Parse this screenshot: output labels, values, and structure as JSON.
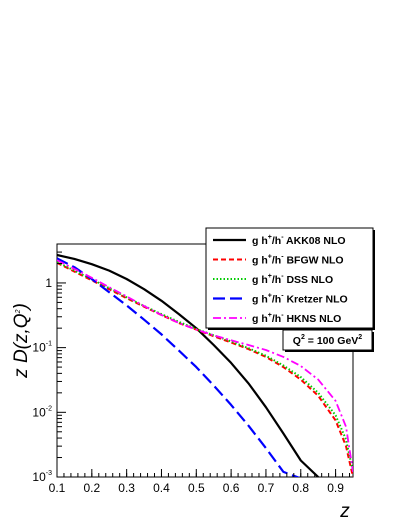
{
  "chart_data": {
    "type": "line",
    "xlabel": "z",
    "ylabel": "z D(z,Q²)",
    "xlim": [
      0.1,
      0.95
    ],
    "ylim": [
      0.001,
      4
    ],
    "yscale": "log",
    "x_ticks": [
      "0.1",
      "0.2",
      "0.3",
      "0.4",
      "0.5",
      "0.6",
      "0.7",
      "0.8",
      "0.9"
    ],
    "y_ticks": [
      {
        "value": 1,
        "base": "1",
        "exp": ""
      },
      {
        "value": 0.1,
        "base": "10",
        "exp": "-1"
      },
      {
        "value": 0.01,
        "base": "10",
        "exp": "-2"
      },
      {
        "value": 0.001,
        "base": "10",
        "exp": "-3"
      }
    ],
    "annotation": {
      "pre": "Q",
      "sup1": "2",
      "mid": " = 100 GeV",
      "sup2": "2"
    },
    "legend_position": "top-right",
    "series": [
      {
        "name": "g h+/h- AKK08 NLO",
        "prefix": "g h",
        "sup1": "+",
        "mid": "/h",
        "sup2": "-",
        "suffix": " AKK08 NLO",
        "color": "#000000",
        "dash": "",
        "width": 2.2,
        "x": [
          0.1,
          0.15,
          0.2,
          0.25,
          0.3,
          0.35,
          0.4,
          0.45,
          0.5,
          0.55,
          0.6,
          0.65,
          0.7,
          0.75,
          0.8,
          0.85
        ],
        "y": [
          2.7,
          2.35,
          1.95,
          1.55,
          1.15,
          0.8,
          0.53,
          0.33,
          0.2,
          0.11,
          0.058,
          0.028,
          0.012,
          0.0047,
          0.0018,
          0.001
        ]
      },
      {
        "name": "g h+/h- BFGW NLO",
        "prefix": "g h",
        "sup1": "+",
        "mid": "/h",
        "sup2": "-",
        "suffix": " BFGW NLO",
        "color": "#ff0000",
        "dash": "5,3",
        "width": 2,
        "x": [
          0.1,
          0.15,
          0.2,
          0.25,
          0.3,
          0.35,
          0.4,
          0.45,
          0.5,
          0.55,
          0.6,
          0.65,
          0.7,
          0.75,
          0.8,
          0.85,
          0.9,
          0.93,
          0.95
        ],
        "y": [
          2.05,
          1.5,
          1.1,
          0.8,
          0.58,
          0.43,
          0.32,
          0.24,
          0.19,
          0.15,
          0.12,
          0.095,
          0.072,
          0.05,
          0.032,
          0.018,
          0.0075,
          0.003,
          0.001
        ]
      },
      {
        "name": "g h+/h- DSS NLO",
        "prefix": "g h",
        "sup1": "+",
        "mid": "/h",
        "sup2": "-",
        "suffix": " DSS NLO",
        "color": "#00cc00",
        "dash": "1.5,2",
        "width": 2,
        "x": [
          0.1,
          0.15,
          0.2,
          0.25,
          0.3,
          0.35,
          0.4,
          0.45,
          0.5,
          0.55,
          0.6,
          0.65,
          0.7,
          0.75,
          0.8,
          0.85,
          0.9,
          0.93,
          0.95
        ],
        "y": [
          2.1,
          1.55,
          1.14,
          0.83,
          0.6,
          0.44,
          0.33,
          0.25,
          0.195,
          0.155,
          0.125,
          0.098,
          0.075,
          0.053,
          0.035,
          0.02,
          0.009,
          0.0038,
          0.0012
        ]
      },
      {
        "name": "g h+/h- Kretzer NLO",
        "prefix": "g h",
        "sup1": "+",
        "mid": "/h",
        "sup2": "-",
        "suffix": " Kretzer NLO",
        "color": "#0000ff",
        "dash": "12,5",
        "width": 2.2,
        "x": [
          0.1,
          0.15,
          0.2,
          0.25,
          0.3,
          0.35,
          0.4,
          0.45,
          0.5,
          0.55,
          0.6,
          0.65,
          0.7,
          0.75,
          0.8
        ],
        "y": [
          2.4,
          1.75,
          1.15,
          0.72,
          0.45,
          0.27,
          0.16,
          0.09,
          0.05,
          0.026,
          0.013,
          0.0062,
          0.0028,
          0.0012,
          0.00095
        ]
      },
      {
        "name": "g h+/h- HKNS NLO",
        "prefix": "g h",
        "sup1": "+",
        "mid": "/h",
        "sup2": "-",
        "suffix": " HKNS NLO",
        "color": "#ff00ff",
        "dash": "8,3,2,3",
        "width": 1.8,
        "x": [
          0.1,
          0.15,
          0.2,
          0.25,
          0.3,
          0.35,
          0.4,
          0.45,
          0.5,
          0.55,
          0.6,
          0.65,
          0.7,
          0.75,
          0.8,
          0.85,
          0.9,
          0.93,
          0.95
        ],
        "y": [
          2.25,
          1.65,
          1.2,
          0.86,
          0.62,
          0.44,
          0.32,
          0.24,
          0.19,
          0.155,
          0.13,
          0.11,
          0.092,
          0.072,
          0.052,
          0.032,
          0.015,
          0.006,
          0.0012
        ]
      }
    ]
  }
}
